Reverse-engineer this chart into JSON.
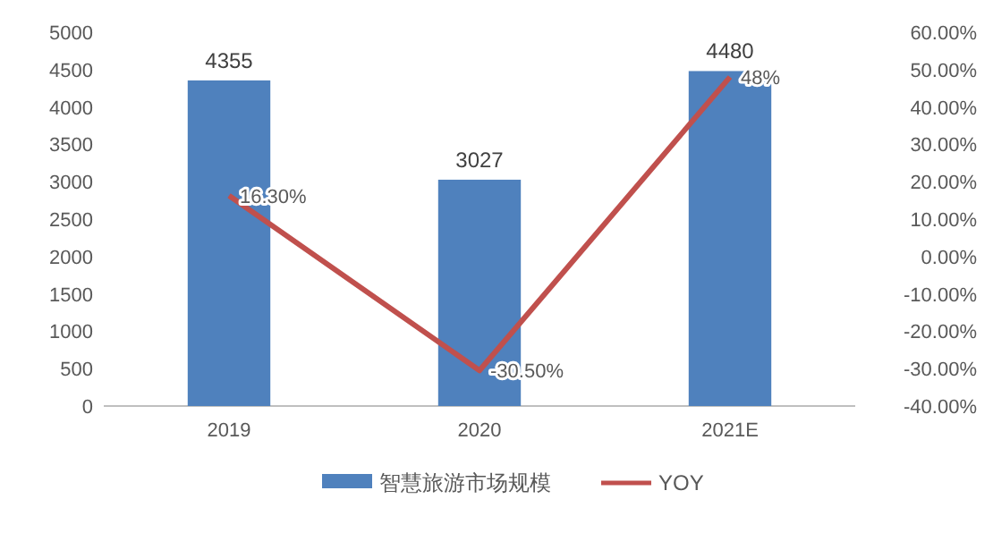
{
  "chart_data": {
    "type": "bar",
    "categories": [
      "2019",
      "2020",
      "2021E"
    ],
    "series": [
      {
        "name": "智慧旅游市场规模",
        "color": "#4f81bd",
        "values": [
          4355,
          3027,
          4480
        ],
        "data_labels": true
      },
      {
        "name": "YOY",
        "type": "line",
        "axis": "y2",
        "color": "#c0504d",
        "values": [
          16.3,
          -30.5,
          48
        ],
        "value_labels": [
          "16.30%",
          "-30.50%",
          "48%"
        ],
        "marker": "none"
      }
    ],
    "ylim": [
      0,
      5000
    ],
    "yticks": [
      0,
      500,
      1000,
      1500,
      2000,
      2500,
      3000,
      3500,
      4000,
      4500,
      5000
    ],
    "y2lim": [
      -40,
      60
    ],
    "y2ticks": [
      {
        "value": -40,
        "label": "-40.00%"
      },
      {
        "value": -30,
        "label": "-30.00%"
      },
      {
        "value": -20,
        "label": "-20.00%"
      },
      {
        "value": -10,
        "label": "-10.00%"
      },
      {
        "value": 0,
        "label": "0.00%"
      },
      {
        "value": 10,
        "label": "10.00%"
      },
      {
        "value": 20,
        "label": "20.00%"
      },
      {
        "value": 30,
        "label": "30.00%"
      },
      {
        "value": 40,
        "label": "40.00%"
      },
      {
        "value": 50,
        "label": "50.00%"
      },
      {
        "value": 60,
        "label": "60.00%"
      }
    ],
    "legend": "bottom"
  }
}
